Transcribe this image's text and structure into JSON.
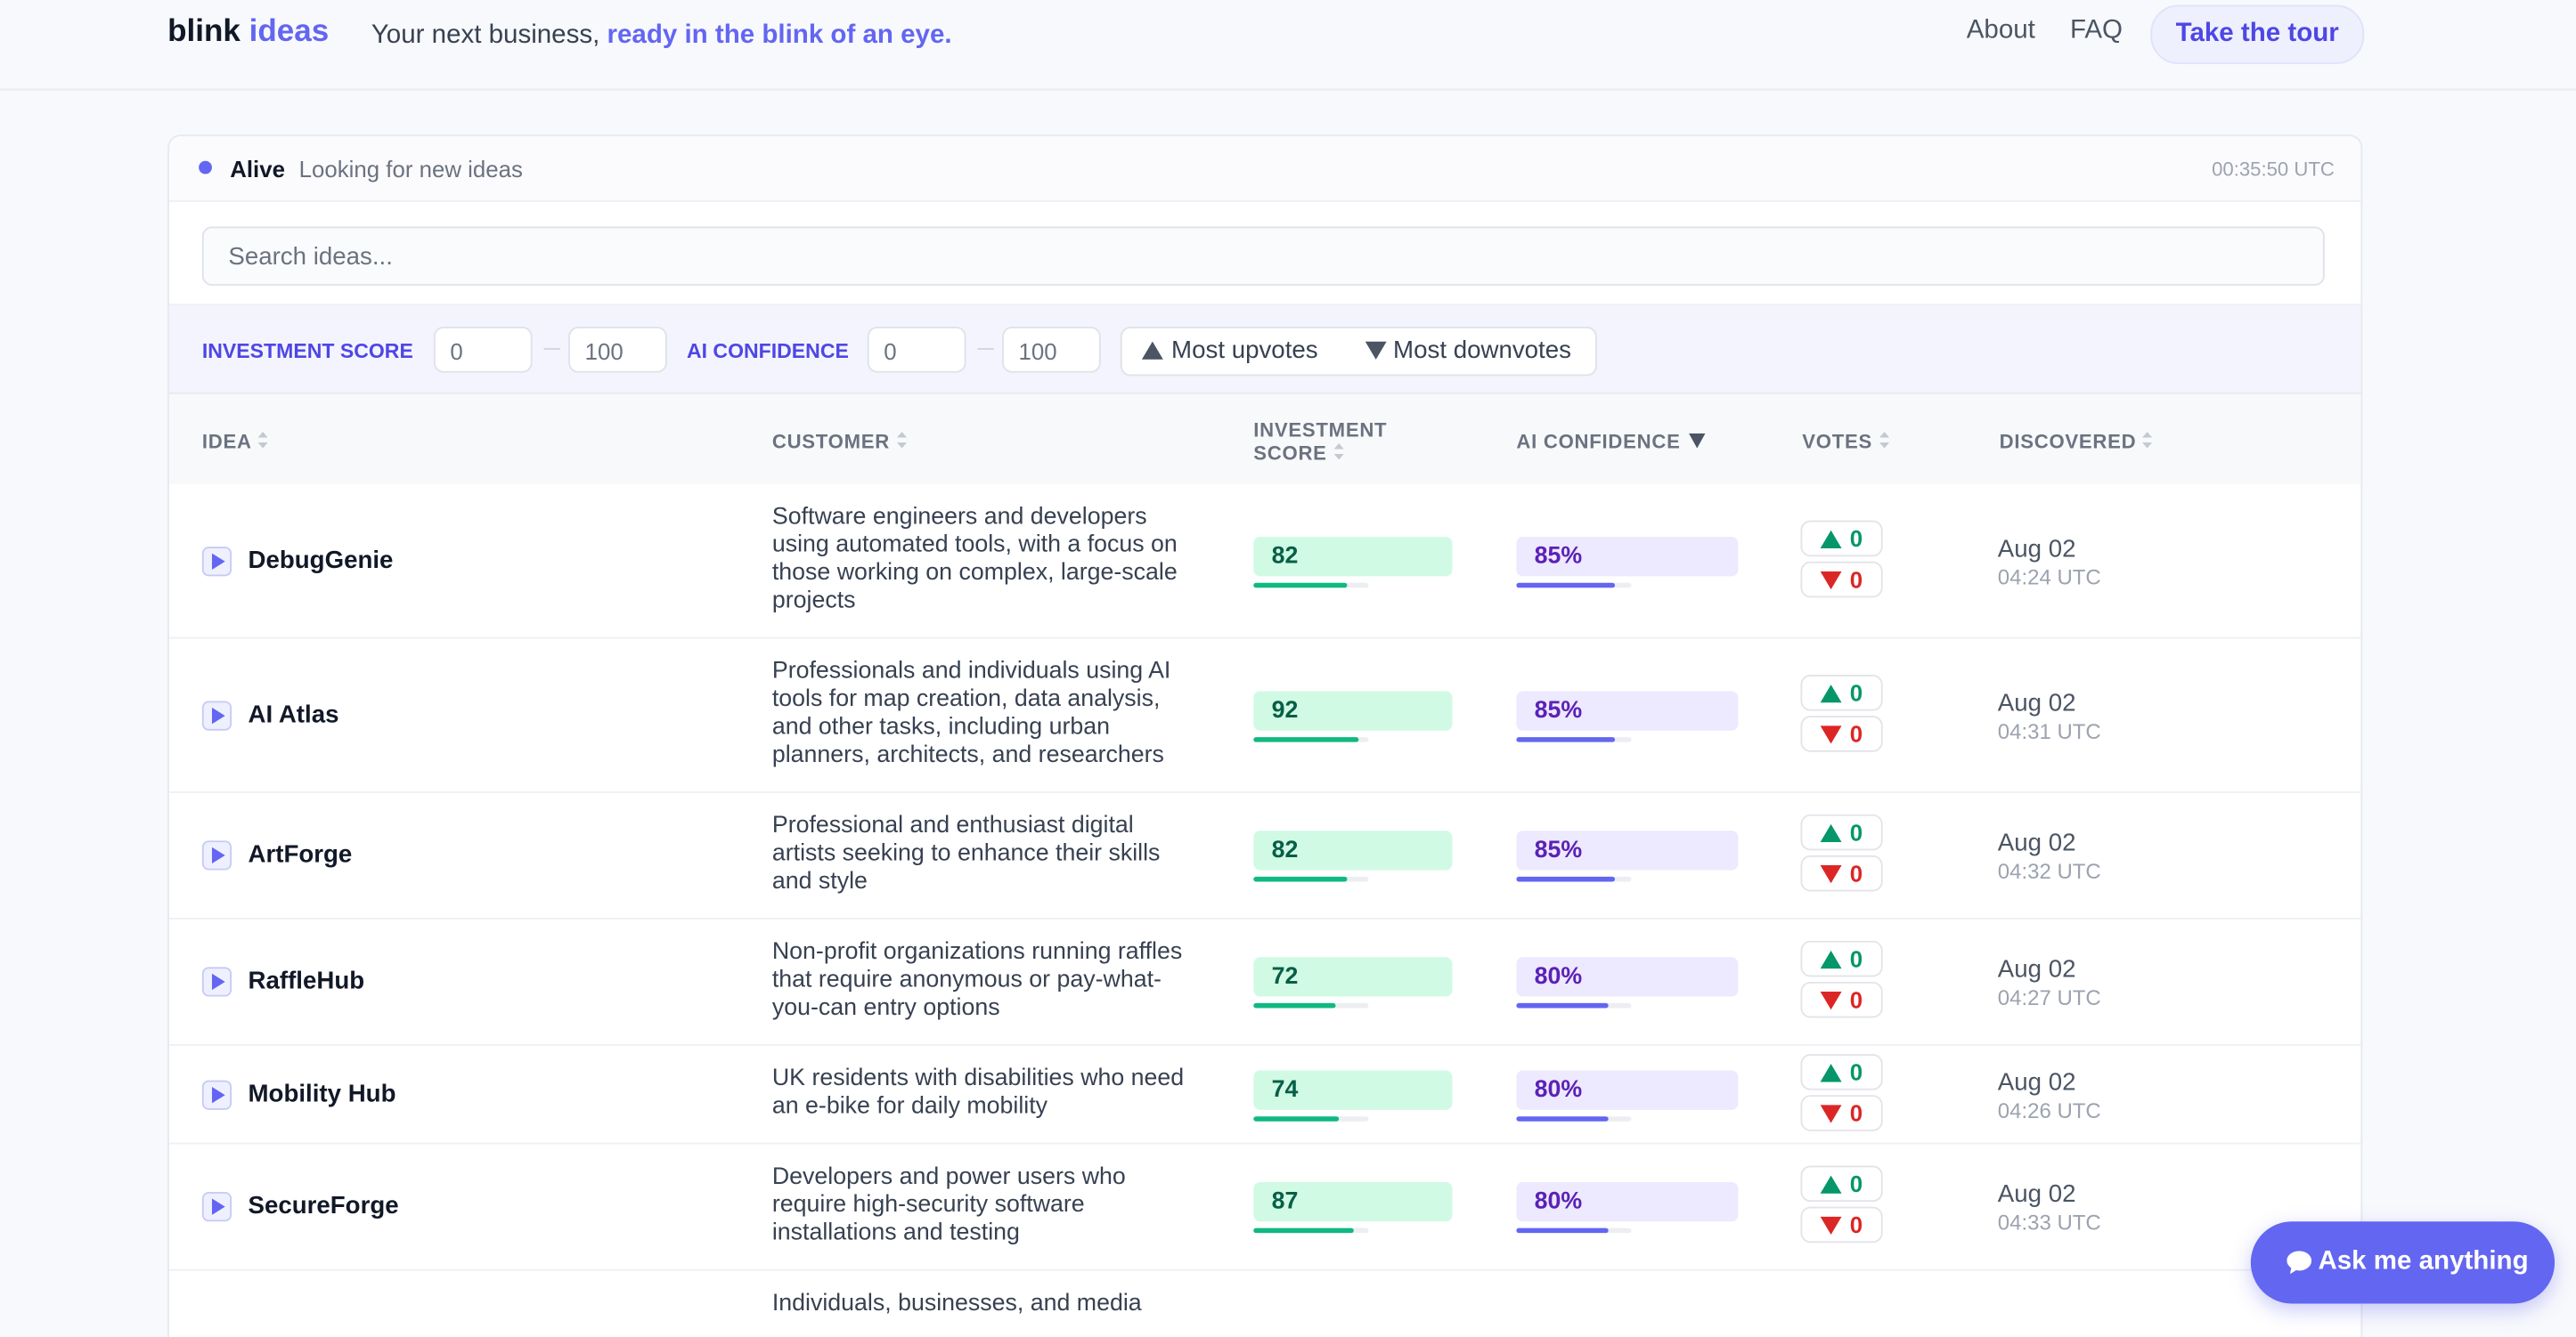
{
  "header": {
    "brand": "blink",
    "brand_accent": "ideas",
    "tagline": "Your next business,",
    "tagline_accent": "ready in the blink of an eye.",
    "nav": [
      "About",
      "FAQ",
      "Take the tour"
    ]
  },
  "status": {
    "state": "Alive",
    "message": "Looking for new ideas",
    "time": "00:35:50 UTC"
  },
  "search": {
    "placeholder": "Search ideas..."
  },
  "filters": {
    "investment_label": "INVESTMENT SCORE",
    "investment_min": 0,
    "investment_max": 100,
    "confidence_label": "AI CONFIDENCE",
    "confidence_min": 0,
    "confidence_max": 100,
    "sort_up": "Most upvotes",
    "sort_down": "Most downvotes"
  },
  "table": {
    "columns": [
      "IDEA",
      "CUSTOMER",
      "INVESTMENT SCORE",
      "AI CONFIDENCE",
      "VOTES",
      "DISCOVERED"
    ],
    "rows": [
      {
        "idea": "DebugGenie",
        "customer": "Software engineers and developers using automated tools, with a focus on those working on complex, large-scale projects",
        "score": 82,
        "confidence": {
          "value": 85,
          "label": "85%"
        },
        "upvotes": 0,
        "downvotes": 0,
        "date": "Aug 02",
        "time": "04:24 UTC"
      },
      {
        "idea": "AI Atlas",
        "customer": "Professionals and individuals using AI tools for map creation, data analysis, and other tasks, including urban planners, architects, and researchers",
        "score": 92,
        "confidence": {
          "value": 85,
          "label": "85%"
        },
        "upvotes": 0,
        "downvotes": 0,
        "date": "Aug 02",
        "time": "04:31 UTC"
      },
      {
        "idea": "ArtForge",
        "customer": "Professional and enthusiast digital artists seeking to enhance their skills and style",
        "score": 82,
        "confidence": {
          "value": 85,
          "label": "85%"
        },
        "upvotes": 0,
        "downvotes": 0,
        "date": "Aug 02",
        "time": "04:32 UTC"
      },
      {
        "idea": "RaffleHub",
        "customer": "Non-profit organizations running raffles that require anonymous or pay-what-you-can entry options",
        "score": 72,
        "confidence": {
          "value": 80,
          "label": "80%"
        },
        "upvotes": 0,
        "downvotes": 0,
        "date": "Aug 02",
        "time": "04:27 UTC"
      },
      {
        "idea": "Mobility Hub",
        "customer": "UK residents with disabilities who need an e-bike for daily mobility",
        "score": 74,
        "confidence": {
          "value": 80,
          "label": "80%"
        },
        "upvotes": 0,
        "downvotes": 0,
        "date": "Aug 02",
        "time": "04:26 UTC"
      },
      {
        "idea": "SecureForge",
        "customer": "Developers and power users who require high-security software installations and testing",
        "score": 87,
        "confidence": {
          "value": 80,
          "label": "80%"
        },
        "upvotes": 0,
        "downvotes": 0,
        "date": "Aug 02",
        "time": "04:33 UTC"
      },
      {
        "customer": "Individuals, businesses, and media"
      }
    ]
  },
  "chat": {
    "button": "Ask me anything"
  }
}
